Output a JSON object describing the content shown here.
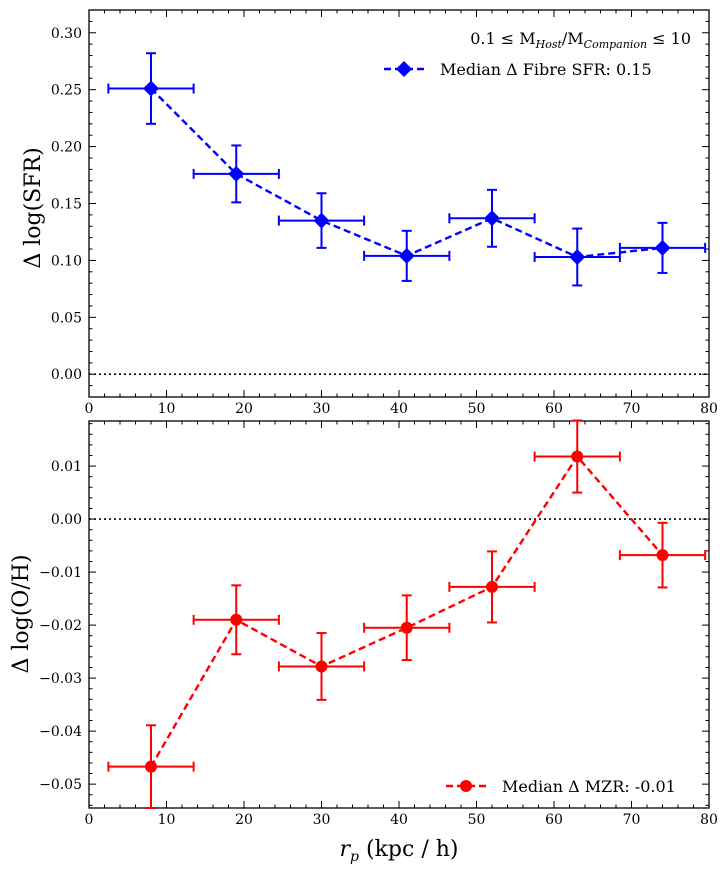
{
  "chart_data": [
    {
      "type": "line",
      "panel": "top",
      "ylabel": "Δ log(SFR)",
      "xlabel": "",
      "xlim": [
        0,
        80
      ],
      "ylim": [
        -0.02,
        0.32
      ],
      "xticks": [
        0,
        10,
        20,
        30,
        40,
        50,
        60,
        70,
        80
      ],
      "yticks": [
        0.0,
        0.05,
        0.1,
        0.15,
        0.2,
        0.25,
        0.3
      ],
      "ytick_labels": [
        "0.00",
        "0.05",
        "0.10",
        "0.15",
        "0.20",
        "0.25",
        "0.30"
      ],
      "reference_line": 0.0,
      "annotation": "0.1 ≤ M",
      "legend_position": "top-right",
      "series": [
        {
          "name": "Median Δ Fibre SFR: 0.15",
          "color": "#0000ff",
          "marker": "diamond",
          "x": [
            8,
            19,
            30,
            41,
            52,
            63,
            74
          ],
          "y": [
            0.251,
            0.176,
            0.135,
            0.104,
            0.137,
            0.103,
            0.111
          ],
          "yerr": [
            0.031,
            0.025,
            0.024,
            0.022,
            0.025,
            0.025,
            0.022
          ],
          "xerr": [
            5.5,
            5.5,
            5.5,
            5.5,
            5.5,
            5.5,
            5.5
          ]
        }
      ]
    },
    {
      "type": "line",
      "panel": "bottom",
      "ylabel": "Δ log(O/H)",
      "xlabel": "r",
      "xlim": [
        0,
        80
      ],
      "ylim": [
        -0.0545,
        0.0185
      ],
      "xticks": [
        0,
        10,
        20,
        30,
        40,
        50,
        60,
        70,
        80
      ],
      "yticks": [
        -0.05,
        -0.04,
        -0.03,
        -0.02,
        -0.01,
        0.0,
        0.01
      ],
      "ytick_labels": [
        "−0.05",
        "−0.04",
        "−0.03",
        "−0.02",
        "−0.01",
        "0.00",
        "0.01"
      ],
      "reference_line": 0.0,
      "legend_position": "bottom-right",
      "series": [
        {
          "name": "Median Δ MZR: -0.01",
          "color": "#ff0000",
          "marker": "circle",
          "x": [
            8,
            19,
            30,
            41,
            52,
            63,
            74
          ],
          "y": [
            -0.0467,
            -0.019,
            -0.0278,
            -0.0205,
            -0.0128,
            0.0118,
            -0.0068
          ],
          "yerr": [
            0.0078,
            0.0065,
            0.0063,
            0.0061,
            0.0067,
            0.0068,
            0.0061
          ],
          "xerr": [
            5.5,
            5.5,
            5.5,
            5.5,
            5.5,
            5.5,
            5.5
          ]
        }
      ]
    }
  ],
  "labels": {
    "ylabel_top_prefix": "Δ ",
    "ylabel_top_main": "log(SFR)",
    "ylabel_bottom_prefix": "Δ ",
    "ylabel_bottom_main": "log(O/H)",
    "xlabel_r": "r",
    "xlabel_sub": "p",
    "xlabel_units": " (kpc / h)",
    "annotation_prefix": "0.1 ≤ M",
    "annotation_sub1": "Host",
    "annotation_mid": "/M",
    "annotation_sub2": "Companion",
    "annotation_suffix": " ≤ 10"
  }
}
